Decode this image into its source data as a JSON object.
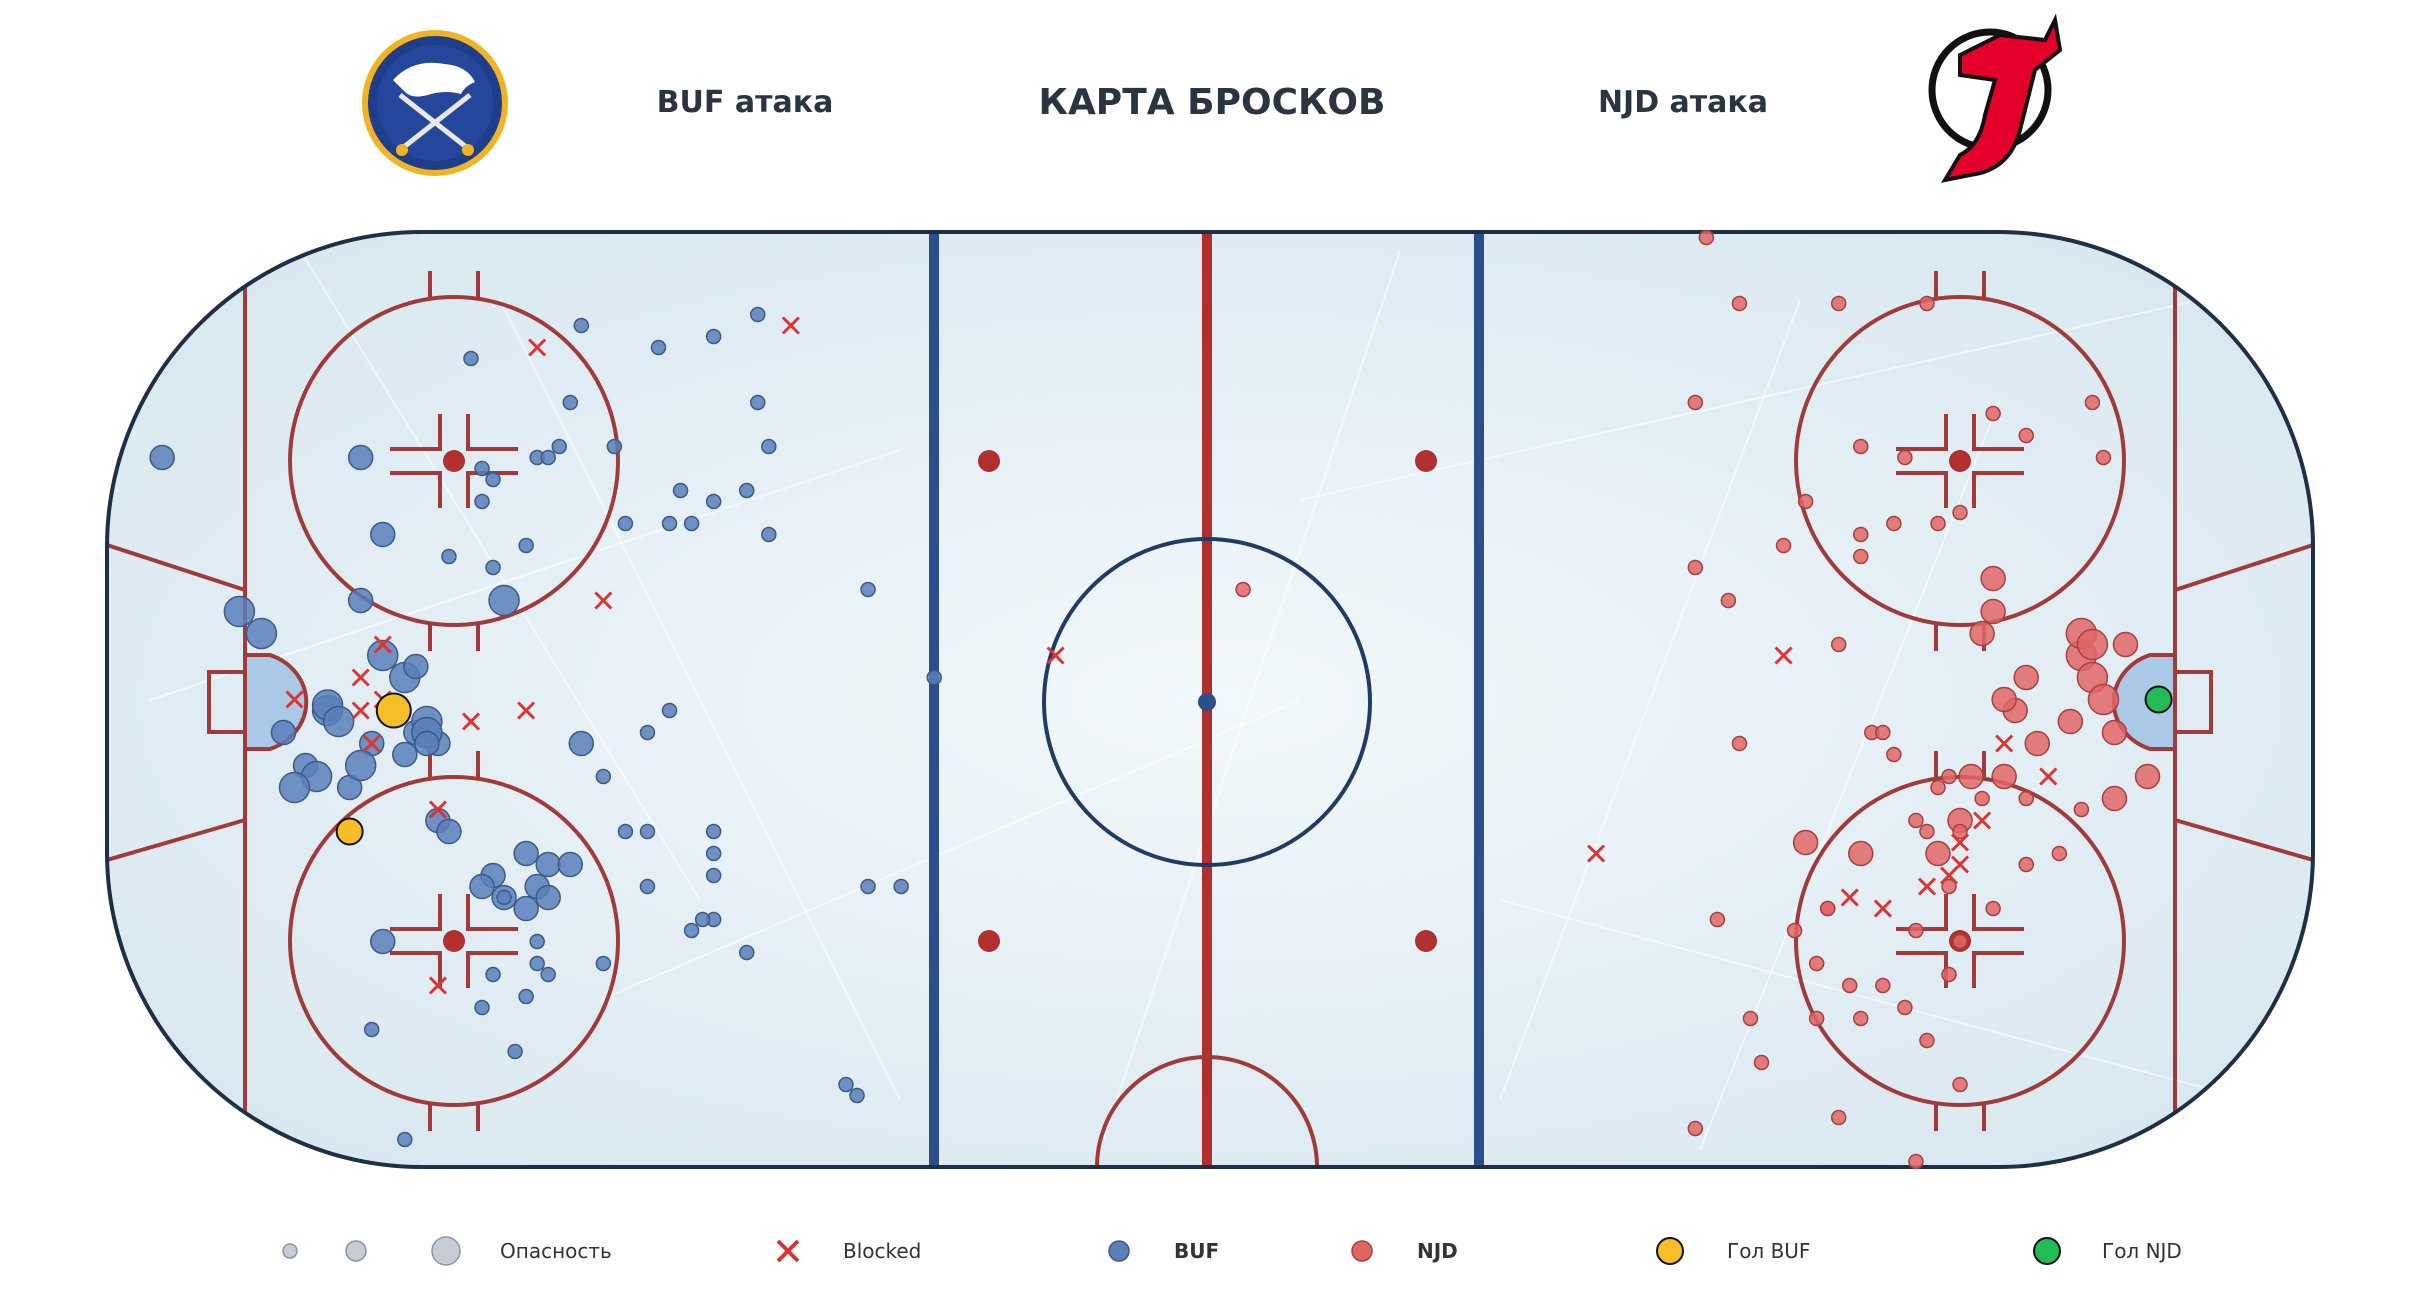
{
  "header": {
    "title": "КАРТА БРОСКОВ",
    "left_label": "BUF атака",
    "right_label": "NJD атака"
  },
  "legend": {
    "danger": "Опасность",
    "blocked": "Blocked",
    "buf": "BUF",
    "njd": "NJD",
    "goal_buf": "Гол BUF",
    "goal_njd": "Гол NJD"
  },
  "colors": {
    "buf": "#5b7fb8",
    "njd": "#e06666",
    "goal_buf": "#f5bd26",
    "goal_njd": "#22bb55",
    "blocked": "#dd3333",
    "rink_line_red": "#a33a3a",
    "rink_line_blue": "#2c4f8c",
    "ice": "#e3eef5",
    "board": "#1f2f45"
  },
  "icons": {
    "left_logo": "buffalo-sabres-logo",
    "right_logo": "new-jersey-devils-logo"
  },
  "chart_data": {
    "type": "scatter",
    "x_range": [
      -100,
      100
    ],
    "y_range": [
      -42.5,
      42.5
    ],
    "series": [
      {
        "name": "BUF",
        "points": [
          [
            -95,
            22,
            2
          ],
          [
            -88,
            8,
            3
          ],
          [
            -86,
            6,
            3
          ],
          [
            -77,
            22,
            2
          ],
          [
            -75,
            -22,
            2
          ],
          [
            -75,
            15,
            2
          ],
          [
            -77,
            9,
            2
          ],
          [
            -73,
            2,
            3
          ],
          [
            -76,
            -4,
            2
          ],
          [
            -64,
            9,
            3
          ],
          [
            -78,
            -8,
            2
          ],
          [
            -77,
            -6,
            3
          ],
          [
            -82,
            -6,
            2
          ],
          [
            -81,
            -7,
            3
          ],
          [
            -83,
            -8,
            3
          ],
          [
            -84,
            -3,
            2
          ],
          [
            -80,
            -1,
            3
          ],
          [
            -80,
            -0.5,
            3
          ],
          [
            -79,
            -2,
            3
          ],
          [
            -75,
            4,
            3
          ],
          [
            -73,
            -5,
            2
          ],
          [
            -72,
            3,
            2
          ],
          [
            -72,
            -3,
            2
          ],
          [
            -70,
            -4,
            2
          ],
          [
            -71,
            -2,
            3
          ],
          [
            -71,
            -3,
            3
          ],
          [
            -71,
            -4,
            2
          ],
          [
            -57,
            -4,
            2
          ],
          [
            -51,
            -12,
            1
          ],
          [
            -51,
            -17,
            1
          ],
          [
            -53,
            -12,
            1
          ],
          [
            -65,
            -16,
            2
          ],
          [
            -60,
            -15,
            2
          ],
          [
            -61,
            -17,
            2
          ],
          [
            -66,
            -17,
            2
          ],
          [
            -70,
            -11,
            2
          ],
          [
            -69,
            -12,
            2
          ],
          [
            -62,
            -14,
            2
          ],
          [
            -64,
            -18,
            2
          ],
          [
            -58,
            -15,
            2
          ],
          [
            -60,
            -18,
            2
          ],
          [
            -62,
            -19,
            2
          ],
          [
            -60,
            -25,
            1
          ],
          [
            -55,
            -24,
            1
          ],
          [
            -45,
            -20,
            1
          ],
          [
            -42,
            -23,
            1
          ],
          [
            -33,
            -35,
            1
          ],
          [
            -73,
            -40,
            1
          ],
          [
            -67,
            31,
            1
          ],
          [
            -57,
            34,
            1
          ],
          [
            -50,
            32,
            1
          ],
          [
            -45,
            33,
            1
          ],
          [
            -41,
            35,
            1
          ],
          [
            -41,
            27,
            1
          ],
          [
            -40,
            23,
            1
          ],
          [
            -42,
            19,
            1
          ],
          [
            -40,
            15,
            1
          ],
          [
            -31,
            10,
            1
          ],
          [
            -25,
            2,
            1
          ],
          [
            -31,
            -17,
            1
          ],
          [
            -76,
            -30,
            1
          ],
          [
            -66,
            -28,
            1
          ],
          [
            -61,
            -22,
            1
          ],
          [
            -65,
            -25,
            1
          ],
          [
            -63,
            -32,
            1
          ],
          [
            -61,
            -24,
            1
          ],
          [
            -64,
            -18,
            1
          ],
          [
            -66,
            21,
            1
          ],
          [
            -69,
            13,
            1
          ],
          [
            -66,
            18,
            1
          ],
          [
            -45,
            -12,
            1
          ],
          [
            -45,
            -14,
            1
          ],
          [
            -45,
            -16,
            1
          ],
          [
            -62,
            -27,
            1
          ],
          [
            -32,
            -36,
            1
          ],
          [
            -62,
            14,
            1
          ],
          [
            -61,
            22,
            1
          ],
          [
            -65,
            12,
            1
          ],
          [
            -59,
            23,
            1
          ],
          [
            -58,
            27,
            1
          ],
          [
            -53,
            16,
            1
          ],
          [
            -54,
            23,
            1
          ],
          [
            -60,
            22,
            1
          ],
          [
            -65,
            20,
            1
          ],
          [
            -46,
            -20,
            1
          ],
          [
            -47,
            -21,
            1
          ],
          [
            -28,
            -17,
            1
          ],
          [
            -48,
            19,
            1
          ],
          [
            -45,
            18,
            1
          ],
          [
            -47,
            16,
            1
          ],
          [
            -49,
            16,
            1
          ],
          [
            -55,
            -7,
            1
          ],
          [
            -51,
            -3,
            1
          ],
          [
            -49,
            -1,
            1
          ]
        ]
      },
      {
        "name": "NJD",
        "points": [
          [
            45,
            42,
            1
          ],
          [
            48,
            36,
            1
          ],
          [
            57,
            36,
            1
          ],
          [
            65,
            36,
            1
          ],
          [
            44,
            27,
            1
          ],
          [
            63,
            22,
            1
          ],
          [
            59,
            23,
            1
          ],
          [
            71,
            26,
            1
          ],
          [
            74,
            24,
            1
          ],
          [
            80,
            27,
            1
          ],
          [
            81,
            22,
            1
          ],
          [
            54,
            18,
            1
          ],
          [
            52,
            14,
            1
          ],
          [
            53,
            -21,
            1
          ],
          [
            44,
            -39,
            1
          ],
          [
            57,
            -38,
            1
          ],
          [
            64,
            -42,
            1
          ],
          [
            65,
            -31,
            1
          ],
          [
            68,
            -22,
            1
          ],
          [
            67,
            -25,
            1
          ],
          [
            64,
            -21,
            1
          ],
          [
            61,
            -26,
            1
          ],
          [
            59,
            -29,
            1
          ],
          [
            56,
            -19,
            1
          ],
          [
            79,
            -10,
            1
          ],
          [
            77,
            -14,
            1
          ],
          [
            74,
            -9,
            1
          ],
          [
            72,
            -7,
            2
          ],
          [
            75,
            -4,
            2
          ],
          [
            73,
            -1,
            2
          ],
          [
            72,
            0,
            2
          ],
          [
            70,
            6,
            2
          ],
          [
            71,
            8,
            2
          ],
          [
            71,
            11,
            2
          ],
          [
            74,
            2,
            2
          ],
          [
            78,
            -2,
            2
          ],
          [
            79,
            4,
            3
          ],
          [
            79,
            6,
            3
          ],
          [
            80,
            2,
            3
          ],
          [
            80,
            5,
            3
          ],
          [
            83,
            5,
            2
          ],
          [
            81,
            0,
            3
          ],
          [
            85,
            -7,
            2
          ],
          [
            82,
            -3,
            2
          ],
          [
            82,
            -9,
            2
          ],
          [
            48,
            -4,
            1
          ],
          [
            57,
            5,
            1
          ],
          [
            59,
            15,
            1
          ],
          [
            59,
            13,
            1
          ],
          [
            49,
            -29,
            1
          ],
          [
            55,
            -29,
            1
          ],
          [
            68,
            17,
            1
          ],
          [
            62,
            16,
            1
          ],
          [
            66,
            16,
            1
          ],
          [
            54,
            -13,
            2
          ],
          [
            59,
            -14,
            2
          ],
          [
            66,
            -14,
            2
          ],
          [
            68,
            -11,
            2
          ],
          [
            69,
            -7,
            2
          ],
          [
            68,
            -12,
            1
          ],
          [
            74,
            -15,
            1
          ],
          [
            71,
            -19,
            1
          ],
          [
            68,
            -35,
            1
          ],
          [
            63,
            -28,
            1
          ],
          [
            58,
            -26,
            1
          ],
          [
            56,
            -19,
            1
          ],
          [
            55,
            -24,
            1
          ],
          [
            50,
            -33,
            1
          ],
          [
            46,
            -20,
            1
          ],
          [
            60,
            -3,
            1
          ],
          [
            61,
            -3,
            1
          ],
          [
            62,
            -5,
            1
          ],
          [
            67,
            -7,
            1
          ],
          [
            66,
            -8,
            1
          ],
          [
            70,
            -9,
            1
          ],
          [
            64,
            -11,
            1
          ],
          [
            65,
            -12,
            1
          ],
          [
            67,
            -17,
            1
          ],
          [
            44,
            12,
            1
          ],
          [
            47,
            9,
            1
          ],
          [
            3,
            10,
            1
          ]
        ]
      },
      {
        "name": "Blocked",
        "points": [
          [
            -61,
            32
          ],
          [
            -38,
            34
          ],
          [
            -55,
            9
          ],
          [
            -75,
            5
          ],
          [
            -77,
            2
          ],
          [
            -75,
            0
          ],
          [
            -83,
            0
          ],
          [
            -77,
            -1
          ],
          [
            -76,
            -4
          ],
          [
            -67,
            -2
          ],
          [
            -62,
            -1
          ],
          [
            -70,
            -10
          ],
          [
            -70,
            -26
          ],
          [
            -14,
            4
          ],
          [
            52,
            4
          ],
          [
            35,
            -14
          ],
          [
            58,
            -18
          ],
          [
            61,
            -19
          ],
          [
            70,
            -11
          ],
          [
            76,
            -7
          ],
          [
            72,
            -4
          ],
          [
            67,
            -16
          ],
          [
            68,
            -13
          ],
          [
            68,
            -15
          ],
          [
            65,
            -17
          ]
        ]
      }
    ],
    "goals": {
      "buf": [
        [
          -74,
          -1
        ],
        [
          -78,
          -12
        ]
      ],
      "njd": [
        [
          86,
          0
        ]
      ]
    }
  }
}
